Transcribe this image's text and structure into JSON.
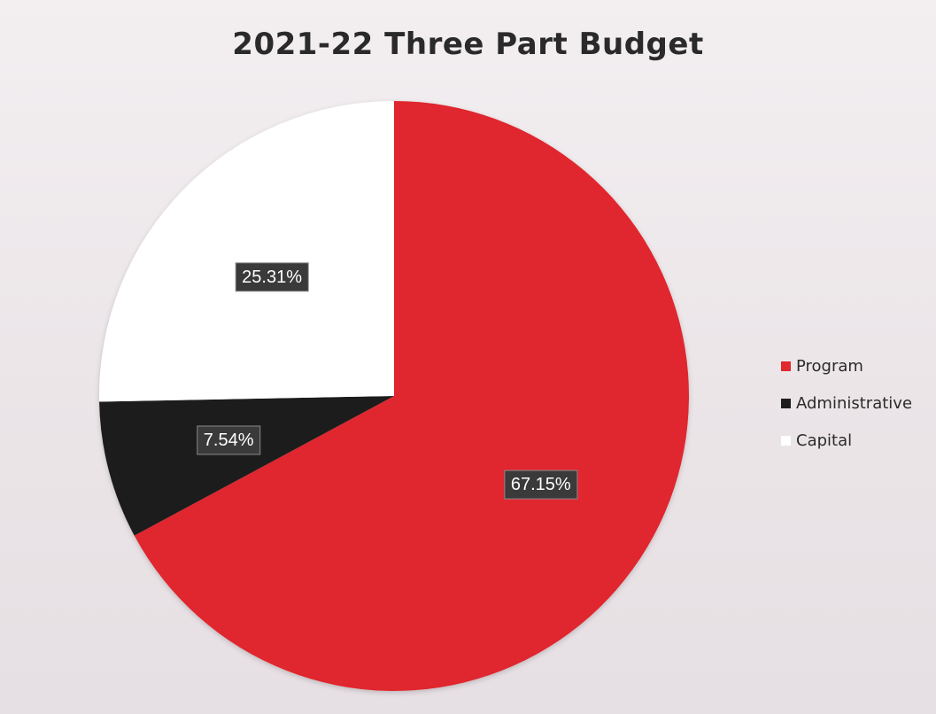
{
  "chart_data": {
    "type": "pie",
    "title": "2021-22 Three Part Budget",
    "legend_position": "right",
    "slices": [
      {
        "name": "Program",
        "value": 67.15,
        "label": "67.15%",
        "color": "#e0282f"
      },
      {
        "name": "Administrative",
        "value": 7.54,
        "label": "7.54%",
        "color": "#1e1e1e"
      },
      {
        "name": "Capital",
        "value": 25.31,
        "label": "25.31%",
        "color": "#ffffff"
      }
    ]
  }
}
